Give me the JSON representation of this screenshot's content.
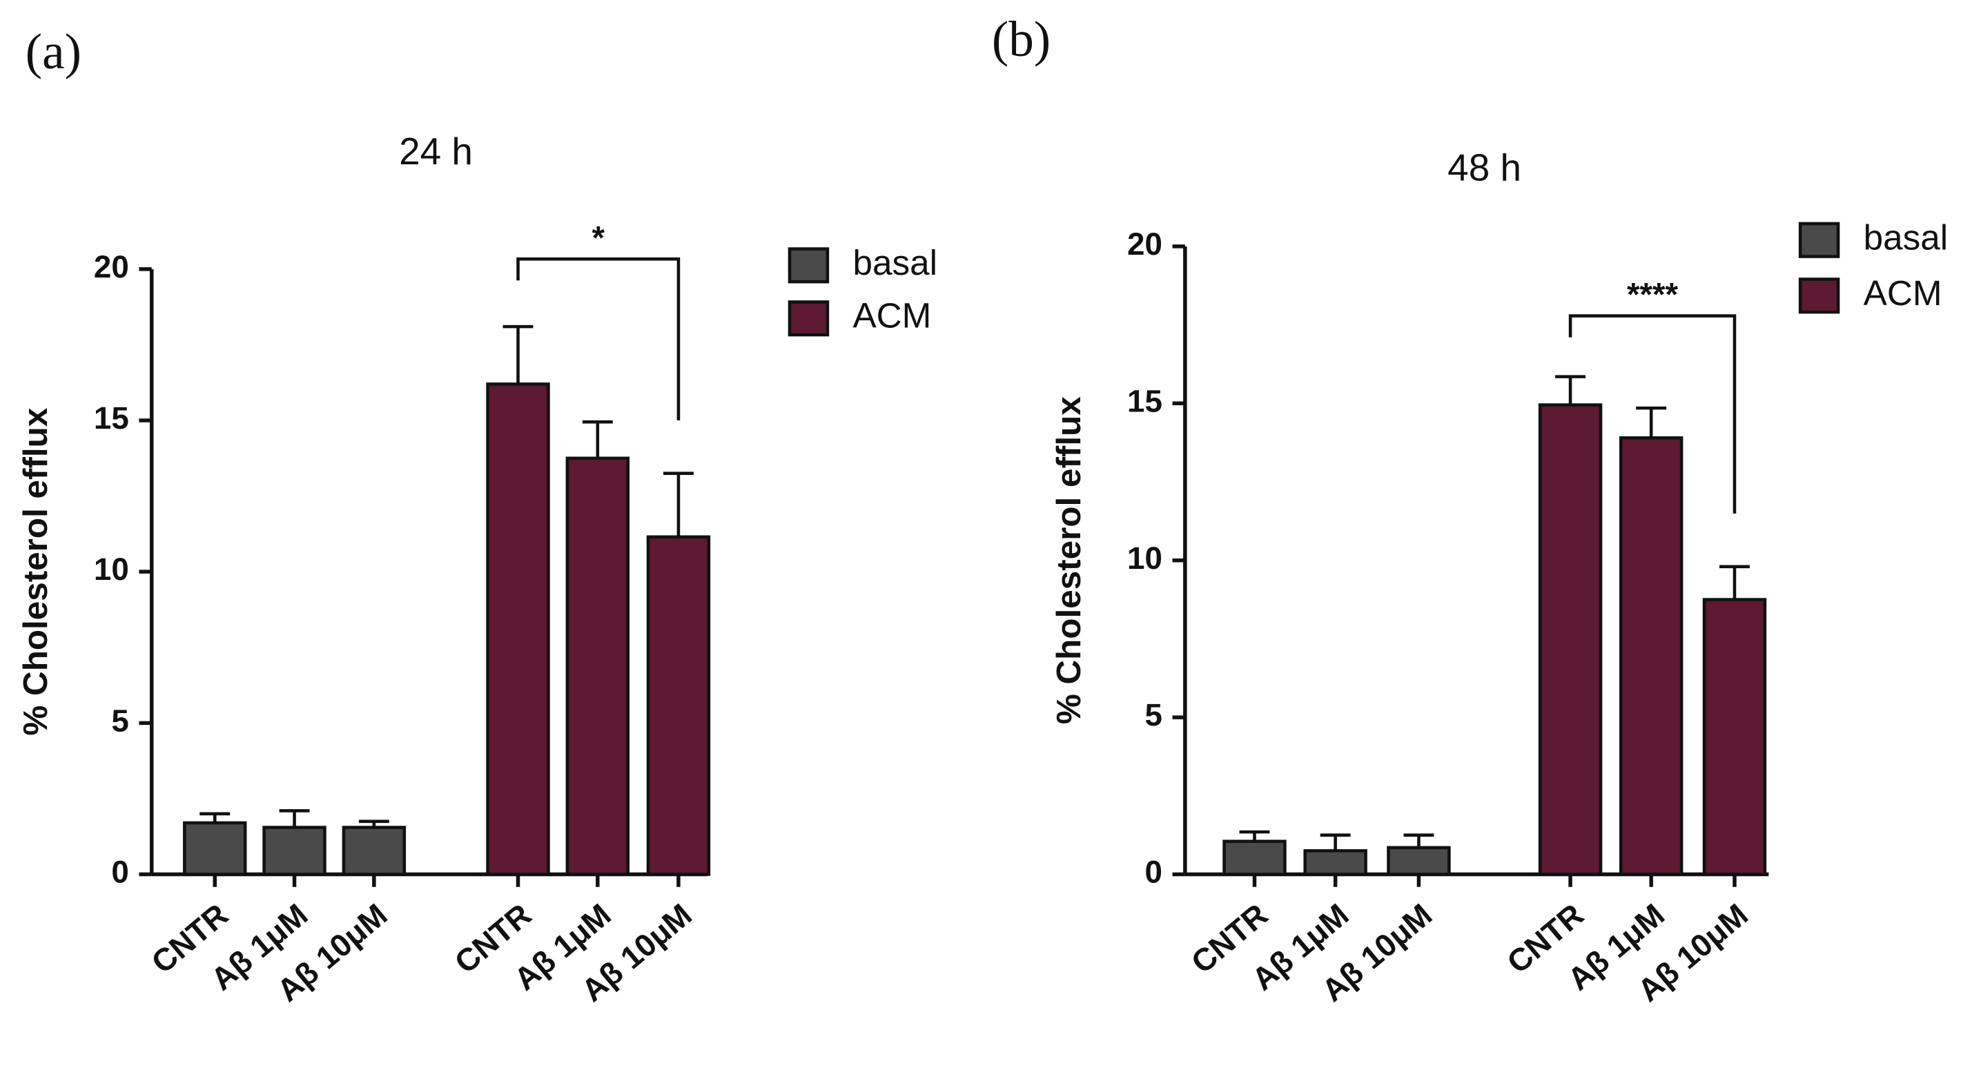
{
  "chart_data": [
    {
      "type": "bar",
      "panel_label": "(a)",
      "title": "24 h",
      "y_label": "% Cholesterol efflux",
      "categories": [
        "CNTR",
        "Aβ 1μM",
        "Aβ 10μM"
      ],
      "series": [
        {
          "name": "basal",
          "color": "#4a4a4a",
          "values": [
            1.7,
            1.55,
            1.55
          ],
          "errors": [
            0.3,
            0.55,
            0.2
          ]
        },
        {
          "name": "ACM",
          "color": "#5e1a33",
          "values": [
            16.2,
            13.75,
            11.15
          ],
          "errors": [
            1.9,
            1.2,
            2.1
          ]
        }
      ],
      "ylim": [
        0,
        20
      ],
      "yticks": [
        0,
        5,
        10,
        15,
        20
      ],
      "annotation": "*"
    },
    {
      "type": "bar",
      "panel_label": "(b)",
      "title": "48 h",
      "y_label": "% Cholesterol efflux",
      "categories": [
        "CNTR",
        "Aβ 1μM",
        "Aβ 10μM"
      ],
      "series": [
        {
          "name": "basal",
          "color": "#4a4a4a",
          "values": [
            1.05,
            0.75,
            0.85
          ],
          "errors": [
            0.3,
            0.5,
            0.4
          ]
        },
        {
          "name": "ACM",
          "color": "#5e1a33",
          "values": [
            14.95,
            13.9,
            8.75
          ],
          "errors": [
            0.9,
            0.95,
            1.05
          ]
        }
      ],
      "ylim": [
        0,
        20
      ],
      "yticks": [
        0,
        5,
        10,
        15,
        20
      ],
      "annotation": "****"
    }
  ]
}
